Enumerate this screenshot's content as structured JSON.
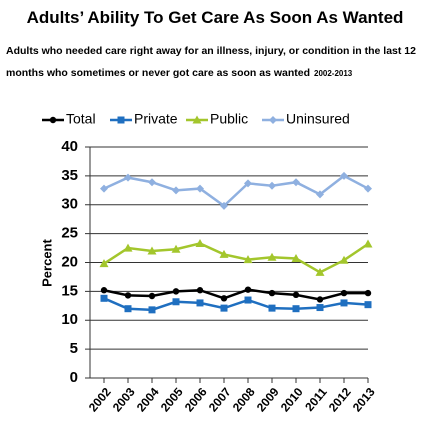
{
  "chart_data": {
    "type": "line",
    "title": "Adults’ Ability To Get Care As Soon As Wanted",
    "subtitle": "Adults who needed care right away for an illness, injury, or condition in the last 12 months who sometimes or never got care as soon as wanted",
    "annotation": "2002-2013",
    "y_label": "Percent",
    "categories": [
      "2002",
      "2003",
      "2004",
      "2005",
      "2006",
      "2007",
      "2008",
      "2009",
      "2010",
      "2011",
      "2012",
      "2013"
    ],
    "series": [
      {
        "name": "Total",
        "color": "#000000",
        "marker": "circle",
        "values": [
          15.2,
          14.3,
          14.2,
          15.0,
          15.2,
          13.8,
          15.3,
          14.7,
          14.4,
          13.6,
          14.7,
          14.7
        ]
      },
      {
        "name": "Private",
        "color": "#1f6fc0",
        "marker": "square",
        "values": [
          13.8,
          12.0,
          11.8,
          13.2,
          13.0,
          12.1,
          13.5,
          12.1,
          12.0,
          12.2,
          13.0,
          12.7
        ]
      },
      {
        "name": "Public",
        "color": "#a3c62c",
        "marker": "triangle",
        "values": [
          19.8,
          22.5,
          22.0,
          22.3,
          23.3,
          21.4,
          20.5,
          20.9,
          20.7,
          18.3,
          20.4,
          23.2
        ]
      },
      {
        "name": "Uninsured",
        "color": "#8fb0e0",
        "marker": "diamond",
        "values": [
          32.8,
          34.7,
          33.9,
          32.5,
          32.8,
          29.8,
          33.7,
          33.3,
          33.9,
          31.8,
          35.0,
          32.8
        ]
      }
    ],
    "ylim": [
      0,
      40
    ],
    "yticks": [
      0,
      5,
      10,
      15,
      20,
      25,
      30,
      35,
      40
    ],
    "grid": true,
    "legend": "top"
  }
}
